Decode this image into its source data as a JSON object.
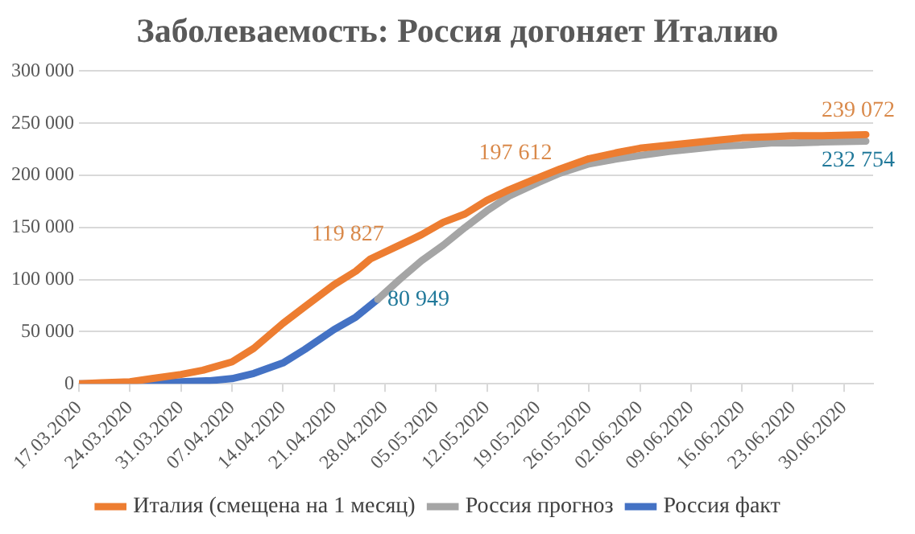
{
  "chart_data": {
    "type": "line",
    "title": "Заболеваемость: Россия догоняет Италию",
    "series": [
      {
        "name": "Италия (смещена на 1 месяц)",
        "color": "#ed7d31",
        "x": [
          "2020-03-17",
          "2020-03-20",
          "2020-03-24",
          "2020-03-27",
          "2020-03-31",
          "2020-04-03",
          "2020-04-07",
          "2020-04-10",
          "2020-04-14",
          "2020-04-17",
          "2020-04-21",
          "2020-04-24",
          "2020-04-26",
          "2020-04-30",
          "2020-05-03",
          "2020-05-06",
          "2020-05-09",
          "2020-05-12",
          "2020-05-15",
          "2020-05-19",
          "2020-05-22",
          "2020-05-26",
          "2020-05-30",
          "2020-06-02",
          "2020-06-06",
          "2020-06-09",
          "2020-06-13",
          "2020-06-16",
          "2020-06-20",
          "2020-06-23",
          "2020-06-27",
          "2020-07-03"
        ],
        "values": [
          0,
          1000,
          2000,
          5000,
          9000,
          13000,
          21000,
          34000,
          58000,
          74000,
          95000,
          108000,
          119827,
          133000,
          143000,
          155000,
          163000,
          176000,
          186000,
          197612,
          206000,
          216000,
          222000,
          226000,
          229000,
          231000,
          234000,
          236000,
          237000,
          238000,
          238000,
          239072
        ]
      },
      {
        "name": "Россия прогноз",
        "color": "#a5a5a5",
        "x": [
          "2020-04-27",
          "2020-04-30",
          "2020-05-03",
          "2020-05-06",
          "2020-05-09",
          "2020-05-12",
          "2020-05-15",
          "2020-05-19",
          "2020-05-22",
          "2020-05-26",
          "2020-05-30",
          "2020-06-02",
          "2020-06-06",
          "2020-06-09",
          "2020-06-13",
          "2020-06-16",
          "2020-06-20",
          "2020-06-23",
          "2020-06-27",
          "2020-07-03"
        ],
        "values": [
          80949,
          100000,
          118000,
          133000,
          150000,
          166000,
          180000,
          193000,
          202000,
          211000,
          216000,
          219000,
          223000,
          225000,
          228000,
          229000,
          231000,
          231000,
          232000,
          232754
        ]
      },
      {
        "name": "Россия факт",
        "color": "#4472c4",
        "x": [
          "2020-03-17",
          "2020-03-24",
          "2020-03-31",
          "2020-04-04",
          "2020-04-07",
          "2020-04-10",
          "2020-04-14",
          "2020-04-17",
          "2020-04-21",
          "2020-04-24",
          "2020-04-27"
        ],
        "values": [
          0,
          0,
          2000,
          3000,
          5000,
          10000,
          20000,
          33000,
          52000,
          64000,
          80949
        ]
      }
    ],
    "annotations": [
      {
        "text": "119 827",
        "x": "2020-04-26",
        "y": 119827
      },
      {
        "text": "80 949",
        "x": "2020-04-27",
        "y": 80949
      },
      {
        "text": "197 612",
        "x": "2020-05-19",
        "y": 197612
      },
      {
        "text": "239 072",
        "x": "2020-07-03",
        "y": 239072
      },
      {
        "text": "232 754",
        "x": "2020-07-03",
        "y": 232754
      }
    ],
    "xlim": [
      "2020-03-17",
      "2020-07-04"
    ],
    "xticks": [
      {
        "value": "2020-03-17",
        "label": "17.03.2020"
      },
      {
        "value": "2020-03-24",
        "label": "24.03.2020"
      },
      {
        "value": "2020-03-31",
        "label": "31.03.2020"
      },
      {
        "value": "2020-04-07",
        "label": "07.04.2020"
      },
      {
        "value": "2020-04-14",
        "label": "14.04.2020"
      },
      {
        "value": "2020-04-21",
        "label": "21.04.2020"
      },
      {
        "value": "2020-04-28",
        "label": "28.04.2020"
      },
      {
        "value": "2020-05-05",
        "label": "05.05.2020"
      },
      {
        "value": "2020-05-12",
        "label": "12.05.2020"
      },
      {
        "value": "2020-05-19",
        "label": "19.05.2020"
      },
      {
        "value": "2020-05-26",
        "label": "26.05.2020"
      },
      {
        "value": "2020-06-02",
        "label": "02.06.2020"
      },
      {
        "value": "2020-06-09",
        "label": "09.06.2020"
      },
      {
        "value": "2020-06-16",
        "label": "16.06.2020"
      },
      {
        "value": "2020-06-23",
        "label": "23.06.2020"
      },
      {
        "value": "2020-06-30",
        "label": "30.06.2020"
      }
    ],
    "ylim": [
      0,
      300000
    ],
    "yticks": [
      0,
      {
        "value": 50000,
        "label": "50 000"
      },
      {
        "value": 100000,
        "label": "100 000"
      },
      {
        "value": 150000,
        "label": "150 000"
      },
      {
        "value": 200000,
        "label": "200 000"
      },
      {
        "value": 250000,
        "label": "250 000"
      },
      {
        "value": 300000,
        "label": "300 000"
      }
    ],
    "grid": "y",
    "legend": "bottom",
    "marker": "none",
    "line_style": "solid"
  }
}
